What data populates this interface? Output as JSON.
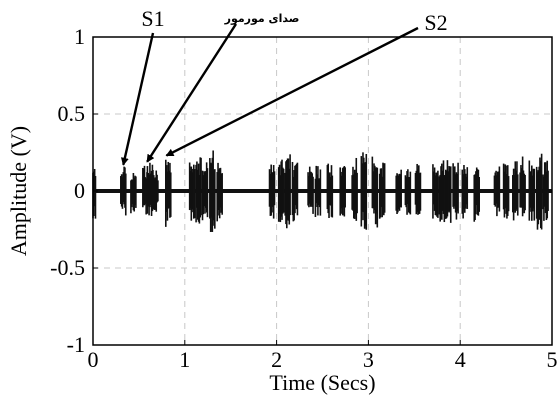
{
  "chart_data": {
    "type": "line",
    "title": "",
    "xlabel": "Time (Secs)",
    "ylabel": "Amplitude (V)",
    "xlim": [
      0,
      5
    ],
    "ylim": [
      -1,
      1
    ],
    "xticks": [
      0,
      1,
      2,
      3,
      4,
      5
    ],
    "yticks": [
      1,
      0.5,
      0,
      -0.5,
      -1
    ],
    "ytick_labels": [
      "1",
      "0.5",
      "0",
      "-0.5",
      "-1"
    ],
    "grid": true,
    "line_color": "#111111",
    "baseline": 0,
    "annotations": [
      {
        "label": "S1",
        "arrow_to": {
          "x": 0.33,
          "y": 0.17
        }
      },
      {
        "label": "صدای مورمور",
        "arrow_to": {
          "x": 0.59,
          "y": 0.19
        }
      },
      {
        "label": "S2",
        "arrow_to": {
          "x": 0.8,
          "y": 0.23
        }
      }
    ],
    "bursts": [
      {
        "x": 0.0,
        "amp": 0.18
      },
      {
        "x": 0.33,
        "amp": 0.16
      },
      {
        "x": 0.44,
        "amp": 0.15
      },
      {
        "x": 0.57,
        "amp": 0.17
      },
      {
        "x": 0.62,
        "amp": 0.19
      },
      {
        "x": 0.68,
        "amp": 0.14
      },
      {
        "x": 0.82,
        "amp": 0.24
      },
      {
        "x": 1.08,
        "amp": 0.2
      },
      {
        "x": 1.15,
        "amp": 0.22
      },
      {
        "x": 1.22,
        "amp": 0.2
      },
      {
        "x": 1.3,
        "amp": 0.27
      },
      {
        "x": 1.38,
        "amp": 0.2
      },
      {
        "x": 1.95,
        "amp": 0.18
      },
      {
        "x": 2.05,
        "amp": 0.22
      },
      {
        "x": 2.12,
        "amp": 0.25
      },
      {
        "x": 2.2,
        "amp": 0.2
      },
      {
        "x": 2.37,
        "amp": 0.16
      },
      {
        "x": 2.45,
        "amp": 0.17
      },
      {
        "x": 2.58,
        "amp": 0.18
      },
      {
        "x": 2.72,
        "amp": 0.17
      },
      {
        "x": 2.85,
        "amp": 0.22
      },
      {
        "x": 2.95,
        "amp": 0.26
      },
      {
        "x": 3.07,
        "amp": 0.24
      },
      {
        "x": 3.15,
        "amp": 0.2
      },
      {
        "x": 3.33,
        "amp": 0.16
      },
      {
        "x": 3.43,
        "amp": 0.18
      },
      {
        "x": 3.54,
        "amp": 0.18
      },
      {
        "x": 3.73,
        "amp": 0.19
      },
      {
        "x": 3.8,
        "amp": 0.21
      },
      {
        "x": 3.87,
        "amp": 0.23
      },
      {
        "x": 3.95,
        "amp": 0.2
      },
      {
        "x": 4.05,
        "amp": 0.18
      },
      {
        "x": 4.18,
        "amp": 0.2
      },
      {
        "x": 4.4,
        "amp": 0.17
      },
      {
        "x": 4.5,
        "amp": 0.18
      },
      {
        "x": 4.6,
        "amp": 0.2
      },
      {
        "x": 4.68,
        "amp": 0.23
      },
      {
        "x": 4.78,
        "amp": 0.22
      },
      {
        "x": 4.86,
        "amp": 0.26
      },
      {
        "x": 4.93,
        "amp": 0.2
      }
    ]
  }
}
